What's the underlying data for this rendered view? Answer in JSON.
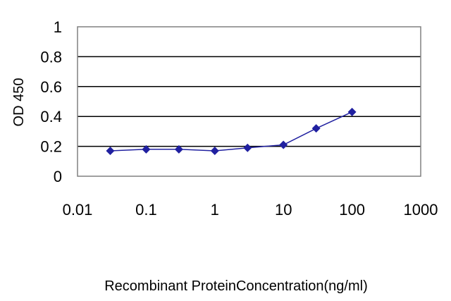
{
  "chart_data": {
    "type": "line",
    "title": "",
    "xlabel": "Recombinant ProteinConcentration(ng/ml)",
    "ylabel": "OD 450",
    "x_scale": "log",
    "xlim": [
      0.01,
      1000
    ],
    "ylim": [
      0,
      1
    ],
    "x_ticks": [
      "0.01",
      "0.1",
      "1",
      "10",
      "100",
      "1000"
    ],
    "y_ticks": [
      "0",
      "0.2",
      "0.4",
      "0.6",
      "0.8",
      "1"
    ],
    "grid": "horizontal",
    "legend": "none",
    "series": [
      {
        "x": [
          0.03,
          0.1,
          0.3,
          1,
          3,
          10,
          30,
          100
        ],
        "y": [
          0.17,
          0.18,
          0.18,
          0.17,
          0.19,
          0.21,
          0.32,
          0.43
        ]
      }
    ],
    "colors": {
      "series": "#2020a0",
      "grid": "#000000",
      "frame": "#808080"
    }
  }
}
